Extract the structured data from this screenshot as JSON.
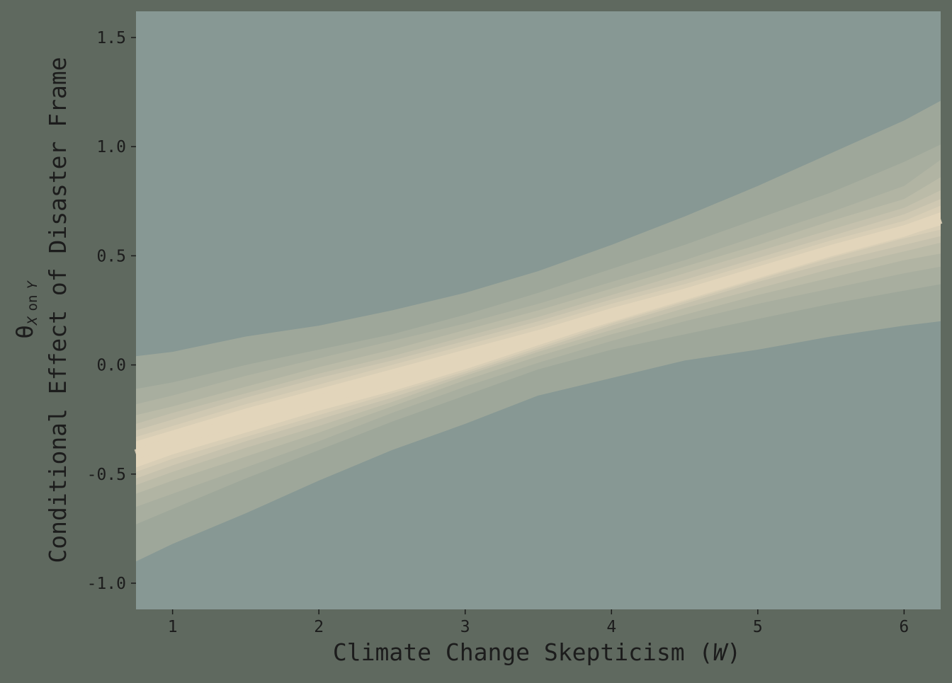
{
  "chart_data": {
    "type": "area",
    "title": "",
    "xlabel": "Climate Change Skepticism (W)",
    "xlabel_main": "Climate Change Skepticism (",
    "xlabel_var": "W",
    "xlabel_close": ")",
    "ylabel": "Conditional Effect of Disaster Frame",
    "ylabel_theta": "θ",
    "ylabel_sub": "X",
    "ylabel_on": "on",
    "ylabel_y": "Y",
    "xlim": [
      0.75,
      6.25
    ],
    "ylim": [
      -1.12,
      1.62
    ],
    "x_ticks": [
      1,
      2,
      3,
      4,
      5,
      6
    ],
    "x_tick_labels": [
      "1",
      "2",
      "3",
      "4",
      "5",
      "6"
    ],
    "y_ticks": [
      -1.0,
      -0.5,
      0.0,
      0.5,
      1.0,
      1.5
    ],
    "y_tick_labels": [
      "-1.0",
      "-0.5",
      "0.0",
      "0.5",
      "1.0",
      "1.5"
    ],
    "grid": false,
    "legend": "none",
    "colors": {
      "background": "#5f695f",
      "panel": "#879894",
      "outer_band": "#9ea79a",
      "center": "#e2d5bb"
    },
    "interval_bands": {
      "x": [
        0.75,
        1.0,
        1.5,
        2.0,
        2.5,
        3.0,
        3.5,
        4.0,
        4.5,
        5.0,
        5.5,
        6.0,
        6.25
      ],
      "center": [
        -0.41,
        -0.35,
        -0.25,
        -0.16,
        -0.07,
        0.02,
        0.12,
        0.22,
        0.32,
        0.42,
        0.52,
        0.61,
        0.67
      ],
      "bands": [
        {
          "lower": [
            -0.9,
            -0.82,
            -0.68,
            -0.53,
            -0.39,
            -0.27,
            -0.14,
            -0.06,
            0.02,
            0.07,
            0.13,
            0.18,
            0.2
          ],
          "upper": [
            0.04,
            0.06,
            0.13,
            0.18,
            0.25,
            0.33,
            0.43,
            0.55,
            0.68,
            0.82,
            0.97,
            1.12,
            1.21
          ]
        },
        {
          "lower": [
            -0.73,
            -0.66,
            -0.52,
            -0.39,
            -0.26,
            -0.14,
            -0.02,
            0.07,
            0.14,
            0.21,
            0.28,
            0.34,
            0.37
          ],
          "upper": [
            -0.11,
            -0.08,
            0.0,
            0.07,
            0.14,
            0.23,
            0.33,
            0.44,
            0.55,
            0.67,
            0.79,
            0.93,
            1.01
          ]
        },
        {
          "lower": [
            -0.65,
            -0.59,
            -0.47,
            -0.35,
            -0.22,
            -0.1,
            0.01,
            0.11,
            0.2,
            0.28,
            0.35,
            0.42,
            0.45
          ],
          "upper": [
            -0.18,
            -0.14,
            -0.05,
            0.03,
            0.11,
            0.19,
            0.28,
            0.38,
            0.48,
            0.59,
            0.7,
            0.82,
            0.94
          ]
        },
        {
          "lower": [
            -0.59,
            -0.53,
            -0.42,
            -0.31,
            -0.19,
            -0.07,
            0.04,
            0.14,
            0.23,
            0.32,
            0.4,
            0.48,
            0.51
          ],
          "upper": [
            -0.23,
            -0.19,
            -0.1,
            -0.01,
            0.07,
            0.16,
            0.25,
            0.35,
            0.45,
            0.55,
            0.66,
            0.76,
            0.86
          ]
        },
        {
          "lower": [
            -0.55,
            -0.49,
            -0.38,
            -0.28,
            -0.17,
            -0.05,
            0.06,
            0.16,
            0.26,
            0.35,
            0.44,
            0.52,
            0.56
          ],
          "upper": [
            -0.27,
            -0.22,
            -0.13,
            -0.04,
            0.04,
            0.13,
            0.22,
            0.32,
            0.42,
            0.52,
            0.62,
            0.72,
            0.8
          ]
        },
        {
          "lower": [
            -0.52,
            -0.46,
            -0.35,
            -0.25,
            -0.15,
            -0.04,
            0.07,
            0.18,
            0.28,
            0.38,
            0.47,
            0.55,
            0.59
          ],
          "upper": [
            -0.3,
            -0.25,
            -0.15,
            -0.06,
            0.02,
            0.11,
            0.2,
            0.3,
            0.39,
            0.49,
            0.59,
            0.69,
            0.76
          ]
        },
        {
          "lower": [
            -0.49,
            -0.43,
            -0.33,
            -0.23,
            -0.13,
            -0.03,
            0.08,
            0.19,
            0.29,
            0.39,
            0.49,
            0.58,
            0.62
          ],
          "upper": [
            -0.33,
            -0.28,
            -0.18,
            -0.09,
            0.0,
            0.09,
            0.18,
            0.28,
            0.37,
            0.47,
            0.57,
            0.66,
            0.73
          ]
        },
        {
          "lower": [
            -0.47,
            -0.41,
            -0.31,
            -0.21,
            -0.12,
            -0.02,
            0.09,
            0.2,
            0.3,
            0.4,
            0.5,
            0.59,
            0.64
          ],
          "upper": [
            -0.35,
            -0.3,
            -0.2,
            -0.11,
            -0.02,
            0.07,
            0.16,
            0.26,
            0.35,
            0.45,
            0.55,
            0.64,
            0.7
          ]
        }
      ]
    }
  }
}
